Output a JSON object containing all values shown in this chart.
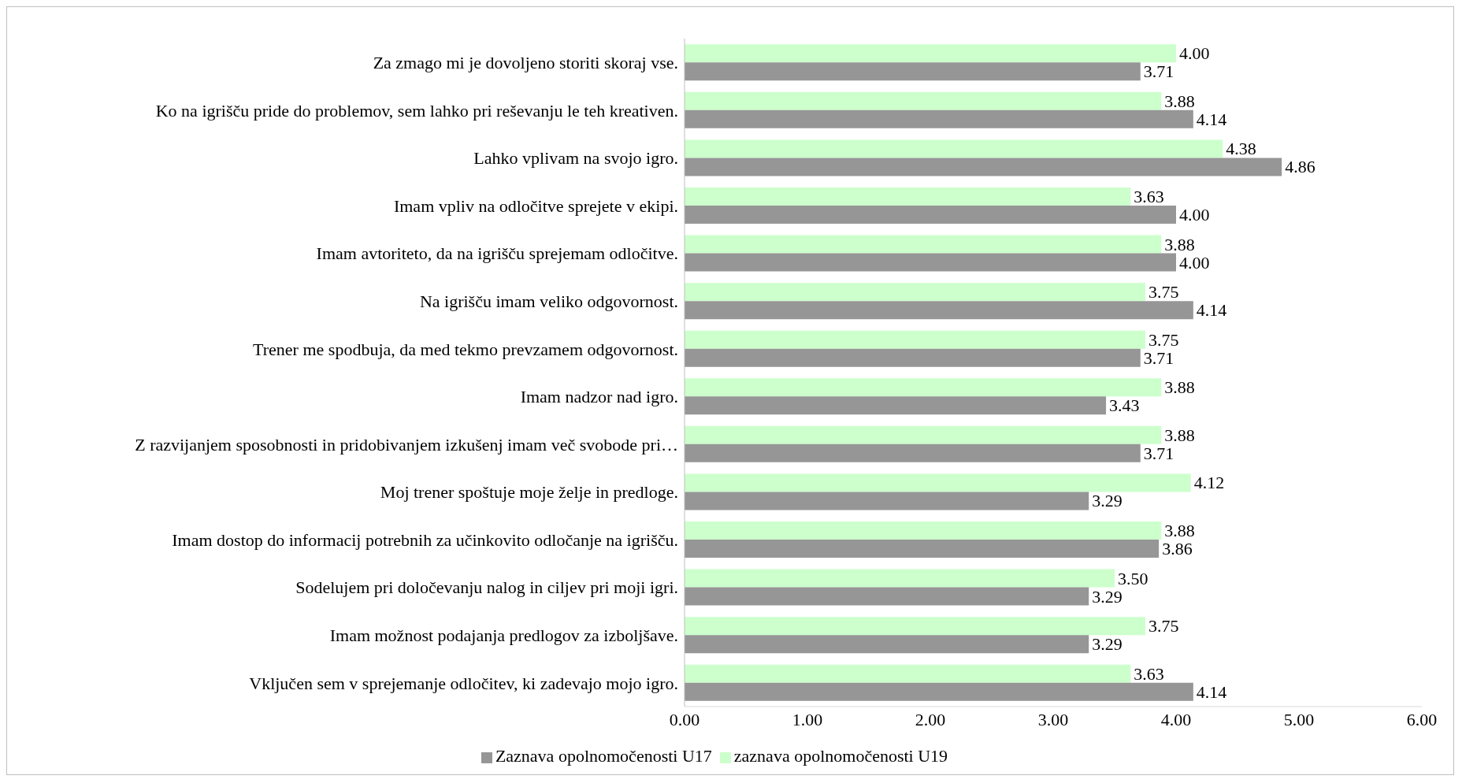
{
  "chart_data": {
    "type": "bar",
    "orientation": "horizontal",
    "categories": [
      "Za zmago mi je dovoljeno storiti skoraj vse.",
      "Ko na igrišču pride do problemov, sem lahko pri reševanju le teh kreativen.",
      "Lahko vplivam na svojo igro.",
      "Imam vpliv na odločitve sprejete v ekipi.",
      "Imam avtoriteto, da na igrišču sprejemam odločitve.",
      "Na igrišču imam veliko odgovornost.",
      "Trener me spodbuja, da med tekmo prevzamem odgovornost. ",
      "Imam nadzor nad igro.",
      "Z razvijanjem sposobnosti in pridobivanjem izkušenj imam več svobode pri…",
      "Moj trener spoštuje moje želje in predloge.",
      "Imam dostop do informacij potrebnih za učinkovito odločanje na igrišču.",
      "Sodelujem pri določevanju nalog in ciljev pri moji igri.",
      "Imam možnost podajanja predlogov za izboljšave.",
      "Vključen sem v sprejemanje odločitev, ki zadevajo mojo igro."
    ],
    "series": [
      {
        "name": "zaznava opolnomočenosti U19",
        "color": "#ccffcc",
        "values": [
          4.0,
          3.88,
          4.38,
          3.63,
          3.88,
          3.75,
          3.75,
          3.88,
          3.88,
          4.12,
          3.88,
          3.5,
          3.75,
          3.63
        ],
        "value_labels": [
          "4.00",
          "3.88",
          "4.38",
          "3.63",
          "3.88",
          "3.75",
          "3.75",
          "3.88",
          "3.88",
          "4.12",
          "3.88",
          "3.50",
          "3.75",
          "3.63"
        ]
      },
      {
        "name": "Zaznava opolnomočenosti U17",
        "color": "#969696",
        "values": [
          3.71,
          4.14,
          4.86,
          4.0,
          4.0,
          4.14,
          3.71,
          3.43,
          3.71,
          3.29,
          3.86,
          3.29,
          3.29,
          4.14
        ],
        "value_labels": [
          "3.71",
          "4.14",
          "4.86",
          "4.00",
          "4.00",
          "4.14",
          "3.71",
          "3.43",
          "3.71",
          "3.29",
          "3.86",
          "3.29",
          "3.29",
          "4.14"
        ]
      }
    ],
    "xlim": [
      0,
      6
    ],
    "xticks": [
      {
        "value": 0,
        "label": "0.00"
      },
      {
        "value": 1,
        "label": "1.00"
      },
      {
        "value": 2,
        "label": "2.00"
      },
      {
        "value": 3,
        "label": "3.00"
      },
      {
        "value": 4,
        "label": "4.00"
      },
      {
        "value": 5,
        "label": "5.00"
      },
      {
        "value": 6,
        "label": "6.00"
      }
    ],
    "grid": false,
    "legend": "bottom"
  }
}
